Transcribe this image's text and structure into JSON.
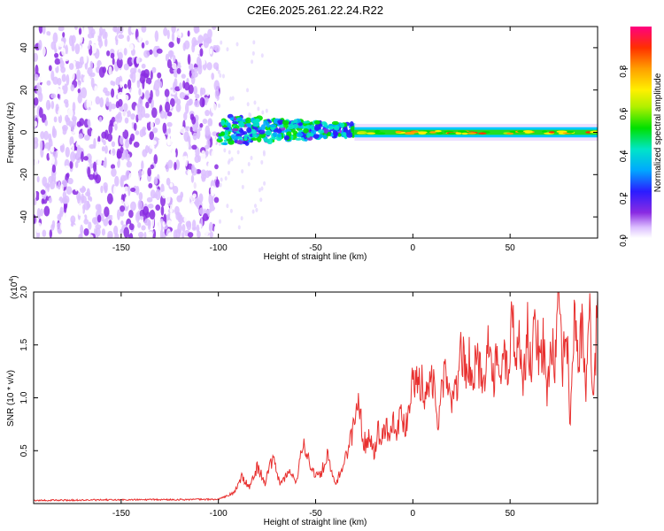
{
  "title": "C2E6.2025.261.22.24.R22",
  "chart_data": [
    {
      "type": "heatmap",
      "title": "C2E6.2025.261.22.24.R22",
      "xlabel": "Height of straight line (km)",
      "ylabel": "Frequency (Hz)",
      "xlim": [
        -195,
        95
      ],
      "ylim": [
        -50,
        50
      ],
      "x_ticks": [
        -150,
        -100,
        -50,
        0,
        50
      ],
      "y_ticks": [
        -40,
        -20,
        0,
        20,
        40
      ],
      "x_tick_labels": [
        "-150",
        "-100",
        "-50",
        "0",
        "50"
      ],
      "y_tick_labels": [
        "-40",
        "-20",
        "0",
        "20",
        "40"
      ],
      "colorbar": {
        "label": "Normalized spectral amplitude",
        "range": [
          0,
          1
        ],
        "ticks": [
          0.0,
          0.2,
          0.4,
          0.6,
          0.8
        ],
        "tick_labels": [
          "0.0",
          "0.2",
          "0.4",
          "0.6",
          "0.8"
        ],
        "colormap": "rainbow (violet to red)"
      },
      "regions": [
        {
          "x_range": [
            -195,
            -100
          ],
          "y_range": [
            -50,
            50
          ],
          "description": "broadband noise",
          "amplitude_range": [
            0.0,
            0.15
          ]
        },
        {
          "x_range": [
            -100,
            -30
          ],
          "y_range": [
            -6,
            8
          ],
          "description": "signal onset",
          "amplitude_range": [
            0.2,
            0.6
          ]
        },
        {
          "x_range": [
            -30,
            95
          ],
          "y_range": [
            -3,
            3
          ],
          "description": "narrow carrier line near 0 Hz",
          "amplitude_range": [
            0.5,
            1.0
          ]
        }
      ]
    },
    {
      "type": "line",
      "xlabel": "Height of straight line (km)",
      "ylabel": "SNR (10 * v/v)",
      "y_scale_label": "(x10",
      "y_scale_exponent": "4",
      "xlim": [
        -195,
        95
      ],
      "ylim": [
        0,
        20000
      ],
      "x_ticks": [
        -150,
        -100,
        -50,
        0,
        50
      ],
      "x_tick_labels": [
        "-150",
        "-100",
        "-50",
        "0",
        "50"
      ],
      "y_ticks": [
        5000,
        10000,
        15000,
        20000
      ],
      "y_tick_labels": [
        "0.5",
        "1.0",
        "1.5",
        "2.0"
      ],
      "color": "#e8302f",
      "series": [
        {
          "x": [
            -195,
            -150,
            -100,
            -92,
            -88,
            -84,
            -80,
            -76,
            -72,
            -68,
            -64,
            -60,
            -56,
            -52,
            -48,
            -44,
            -40,
            -36,
            -33,
            -30,
            -28,
            -26,
            -24,
            -22,
            -20,
            -18,
            -16,
            -14,
            -12,
            -10,
            -8,
            -6,
            -4,
            -2,
            0,
            1,
            3,
            5,
            7,
            9,
            11,
            13,
            15,
            17,
            19,
            21,
            23,
            25,
            27,
            29,
            31,
            33,
            35,
            37,
            39,
            41,
            43,
            45,
            47,
            49,
            51,
            53,
            55,
            57,
            59,
            61,
            63,
            65,
            67,
            69,
            71,
            73,
            75,
            77,
            79,
            81,
            83,
            85,
            87,
            89,
            91,
            93,
            95
          ],
          "y": [
            300,
            350,
            400,
            1000,
            2500,
            1500,
            3500,
            2000,
            4200,
            1800,
            3000,
            2200,
            5800,
            3200,
            2500,
            4500,
            1700,
            3500,
            5500,
            7500,
            10300,
            6500,
            5500,
            6800,
            4800,
            7000,
            6000,
            7600,
            6300,
            8200,
            7000,
            8500,
            7200,
            9000,
            13500,
            11000,
            12500,
            11000,
            10000,
            13000,
            10500,
            7000,
            11500,
            12500,
            10000,
            9500,
            11500,
            15000,
            12000,
            13800,
            11500,
            14000,
            12000,
            12800,
            15500,
            11500,
            13500,
            11000,
            14500,
            12000,
            18400,
            13500,
            15500,
            11500,
            16500,
            12500,
            17500,
            13500,
            15500,
            10000,
            16000,
            13000,
            18500,
            12500,
            17000,
            7000,
            18700,
            13500,
            16500,
            11000,
            17500,
            9000,
            19500
          ]
        }
      ]
    }
  ]
}
